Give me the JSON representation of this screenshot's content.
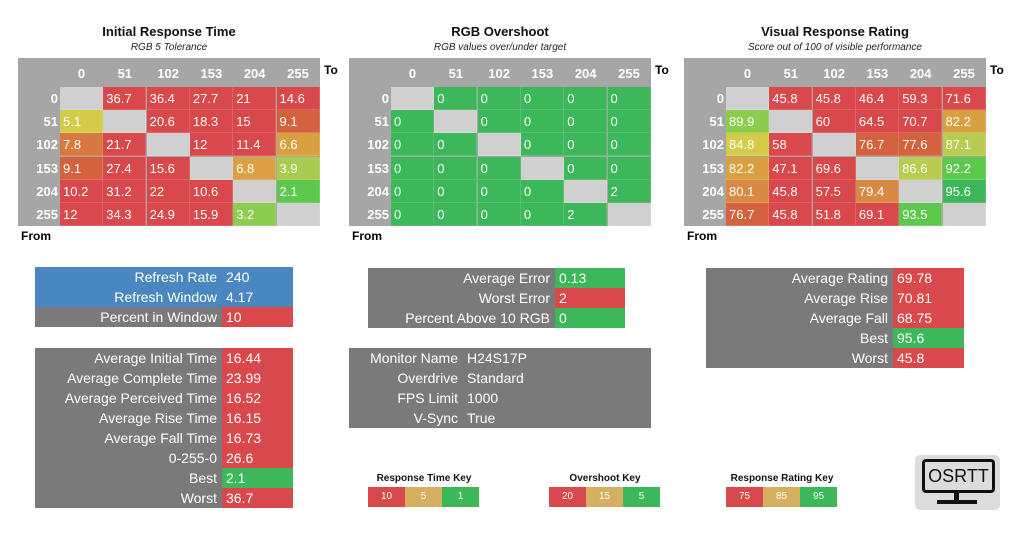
{
  "axis": {
    "to": "To",
    "from": "From",
    "labels": [
      "0",
      "51",
      "102",
      "153",
      "204",
      "255"
    ]
  },
  "grids": [
    {
      "title": "Initial Response Time",
      "subtitle": "RGB 5 Tolerance",
      "values": [
        [
          "",
          "36.7",
          "36.4",
          "27.7",
          "21",
          "14.6"
        ],
        [
          "5.1",
          "",
          "20.6",
          "18.3",
          "15",
          "9.1"
        ],
        [
          "7.8",
          "21.7",
          "",
          "12",
          "11.4",
          "6.6"
        ],
        [
          "9.1",
          "27.4",
          "15.6",
          "",
          "6.8",
          "3.9"
        ],
        [
          "10.2",
          "31.2",
          "22",
          "10.6",
          "",
          "2.1"
        ],
        [
          "12",
          "34.3",
          "24.9",
          "15.9",
          "3.2",
          ""
        ]
      ],
      "colors": [
        [
          "#d0d0d0",
          "#d9484a",
          "#d9484a",
          "#d9484a",
          "#d9484a",
          "#d9484a"
        ],
        [
          "#d4cc48",
          "#d0d0d0",
          "#d9484a",
          "#d9484a",
          "#d9484a",
          "#d4623f"
        ],
        [
          "#d6783f",
          "#d9484a",
          "#d0d0d0",
          "#d9484a",
          "#d9484a",
          "#d9a040"
        ],
        [
          "#d4623f",
          "#d9484a",
          "#d9484a",
          "#d0d0d0",
          "#dca044",
          "#a8cc50"
        ],
        [
          "#d9484a",
          "#d9484a",
          "#d9484a",
          "#d9484a",
          "#d0d0d0",
          "#5cc84c"
        ],
        [
          "#d9484a",
          "#d9484a",
          "#d9484a",
          "#d9484a",
          "#8ccc50",
          "#d0d0d0"
        ]
      ]
    },
    {
      "title": "RGB Overshoot",
      "subtitle": "RGB values over/under target",
      "values": [
        [
          "",
          "0",
          "0",
          "0",
          "0",
          "0"
        ],
        [
          "0",
          "",
          "0",
          "0",
          "0",
          "0"
        ],
        [
          "0",
          "0",
          "",
          "0",
          "0",
          "0"
        ],
        [
          "0",
          "0",
          "0",
          "",
          "0",
          "0"
        ],
        [
          "0",
          "0",
          "0",
          "0",
          "",
          "2"
        ],
        [
          "0",
          "0",
          "0",
          "0",
          "2",
          ""
        ]
      ],
      "colors": [
        [
          "#d0d0d0",
          "#3cb85a",
          "#3cb85a",
          "#3cb85a",
          "#3cb85a",
          "#3cb85a"
        ],
        [
          "#3cb85a",
          "#d0d0d0",
          "#3cb85a",
          "#3cb85a",
          "#3cb85a",
          "#3cb85a"
        ],
        [
          "#3cb85a",
          "#3cb85a",
          "#d0d0d0",
          "#3cb85a",
          "#3cb85a",
          "#3cb85a"
        ],
        [
          "#3cb85a",
          "#3cb85a",
          "#3cb85a",
          "#d0d0d0",
          "#3cb85a",
          "#3cb85a"
        ],
        [
          "#3cb85a",
          "#3cb85a",
          "#3cb85a",
          "#3cb85a",
          "#d0d0d0",
          "#3cb85a"
        ],
        [
          "#3cb85a",
          "#3cb85a",
          "#3cb85a",
          "#3cb85a",
          "#3cb85a",
          "#d0d0d0"
        ]
      ]
    },
    {
      "title": "Visual Response Rating",
      "subtitle": "Score out of 100 of visible performance",
      "values": [
        [
          "",
          "45.8",
          "45.8",
          "46.4",
          "59.3",
          "71.6"
        ],
        [
          "89.9",
          "",
          "60",
          "64.5",
          "70.7",
          "82.2"
        ],
        [
          "84.8",
          "58",
          "",
          "76.7",
          "77.6",
          "87.1"
        ],
        [
          "82.2",
          "47.1",
          "69.6",
          "",
          "86.6",
          "92.2"
        ],
        [
          "80.1",
          "45.8",
          "57.5",
          "79.4",
          "",
          "95.6"
        ],
        [
          "76.7",
          "45.8",
          "51.8",
          "69.1",
          "93.5",
          ""
        ]
      ],
      "colors": [
        [
          "#d0d0d0",
          "#d9484a",
          "#d9484a",
          "#d9484a",
          "#d9484a",
          "#d9484a"
        ],
        [
          "#8ccc4c",
          "#d0d0d0",
          "#d9484a",
          "#d9484a",
          "#d9484a",
          "#d9a040"
        ],
        [
          "#d4cc48",
          "#d9484a",
          "#d0d0d0",
          "#d4623f",
          "#d4623f",
          "#b8cc50"
        ],
        [
          "#d9a040",
          "#d9484a",
          "#d9484a",
          "#d0d0d0",
          "#b8cc50",
          "#5cc84c"
        ],
        [
          "#d88a44",
          "#d9484a",
          "#d9484a",
          "#d88a44",
          "#d0d0d0",
          "#3cb85a"
        ],
        [
          "#d4623f",
          "#d9484a",
          "#d9484a",
          "#d9484a",
          "#5cc84c",
          "#d0d0d0"
        ]
      ]
    }
  ],
  "stats": {
    "refresh": [
      {
        "label": "Refresh Rate",
        "value": "240",
        "lc": "#4a86c0",
        "vc": "#4a86c0"
      },
      {
        "label": "Refresh Window",
        "value": "4.17",
        "lc": "#4a86c0",
        "vc": "#4a86c0"
      },
      {
        "label": "Percent in Window",
        "value": "10",
        "lc": "#7a7a7a",
        "vc": "#d9484a"
      }
    ],
    "times": [
      {
        "label": "Average Initial Time",
        "value": "16.44",
        "lc": "#7a7a7a",
        "vc": "#d9484a"
      },
      {
        "label": "Average Complete Time",
        "value": "23.99",
        "lc": "#7a7a7a",
        "vc": "#d9484a"
      },
      {
        "label": "Average Perceived Time",
        "value": "16.52",
        "lc": "#7a7a7a",
        "vc": "#d9484a"
      },
      {
        "label": "Average Rise Time",
        "value": "16.15",
        "lc": "#7a7a7a",
        "vc": "#d9484a"
      },
      {
        "label": "Average Fall Time",
        "value": "16.73",
        "lc": "#7a7a7a",
        "vc": "#d9484a"
      },
      {
        "label": "0-255-0",
        "value": "26.6",
        "lc": "#7a7a7a",
        "vc": "#d9484a"
      },
      {
        "label": "Best",
        "value": "2.1",
        "lc": "#7a7a7a",
        "vc": "#3cb85a"
      },
      {
        "label": "Worst",
        "value": "36.7",
        "lc": "#7a7a7a",
        "vc": "#d9484a"
      }
    ],
    "overshoot": [
      {
        "label": "Average Error",
        "value": "0.13",
        "lc": "#7a7a7a",
        "vc": "#3cb85a"
      },
      {
        "label": "Worst Error",
        "value": "2",
        "lc": "#7a7a7a",
        "vc": "#d9484a"
      },
      {
        "label": "Percent Above 10 RGB",
        "value": "0",
        "lc": "#7a7a7a",
        "vc": "#3cb85a"
      }
    ],
    "monitor": [
      {
        "label": "Monitor Name",
        "value": "H24S17P",
        "lc": "#7a7a7a",
        "vc": "#7a7a7a"
      },
      {
        "label": "Overdrive",
        "value": "Standard",
        "lc": "#7a7a7a",
        "vc": "#7a7a7a"
      },
      {
        "label": "FPS Limit",
        "value": "1000",
        "lc": "#7a7a7a",
        "vc": "#7a7a7a"
      },
      {
        "label": "V-Sync",
        "value": "True",
        "lc": "#7a7a7a",
        "vc": "#7a7a7a"
      }
    ],
    "rating": [
      {
        "label": "Average Rating",
        "value": "69.78",
        "lc": "#7a7a7a",
        "vc": "#d9484a"
      },
      {
        "label": "Average Rise",
        "value": "70.81",
        "lc": "#7a7a7a",
        "vc": "#d9484a"
      },
      {
        "label": "Average Fall",
        "value": "68.75",
        "lc": "#7a7a7a",
        "vc": "#d9484a"
      },
      {
        "label": "Best",
        "value": "95.6",
        "lc": "#7a7a7a",
        "vc": "#3cb85a"
      },
      {
        "label": "Worst",
        "value": "45.8",
        "lc": "#7a7a7a",
        "vc": "#d9484a"
      }
    ]
  },
  "keys": [
    {
      "title": "Response Time Key",
      "items": [
        {
          "v": "10",
          "c": "#d9484a"
        },
        {
          "v": "5",
          "c": "#d4b060"
        },
        {
          "v": "1",
          "c": "#3cb85a"
        }
      ]
    },
    {
      "title": "Overshoot Key",
      "items": [
        {
          "v": "20",
          "c": "#d9484a"
        },
        {
          "v": "15",
          "c": "#d4b060"
        },
        {
          "v": "5",
          "c": "#3cb85a"
        }
      ]
    },
    {
      "title": "Response Rating Key",
      "items": [
        {
          "v": "75",
          "c": "#d9484a"
        },
        {
          "v": "85",
          "c": "#d4b060"
        },
        {
          "v": "95",
          "c": "#3cb85a"
        }
      ]
    }
  ],
  "logo": {
    "text": "OSRTT"
  }
}
